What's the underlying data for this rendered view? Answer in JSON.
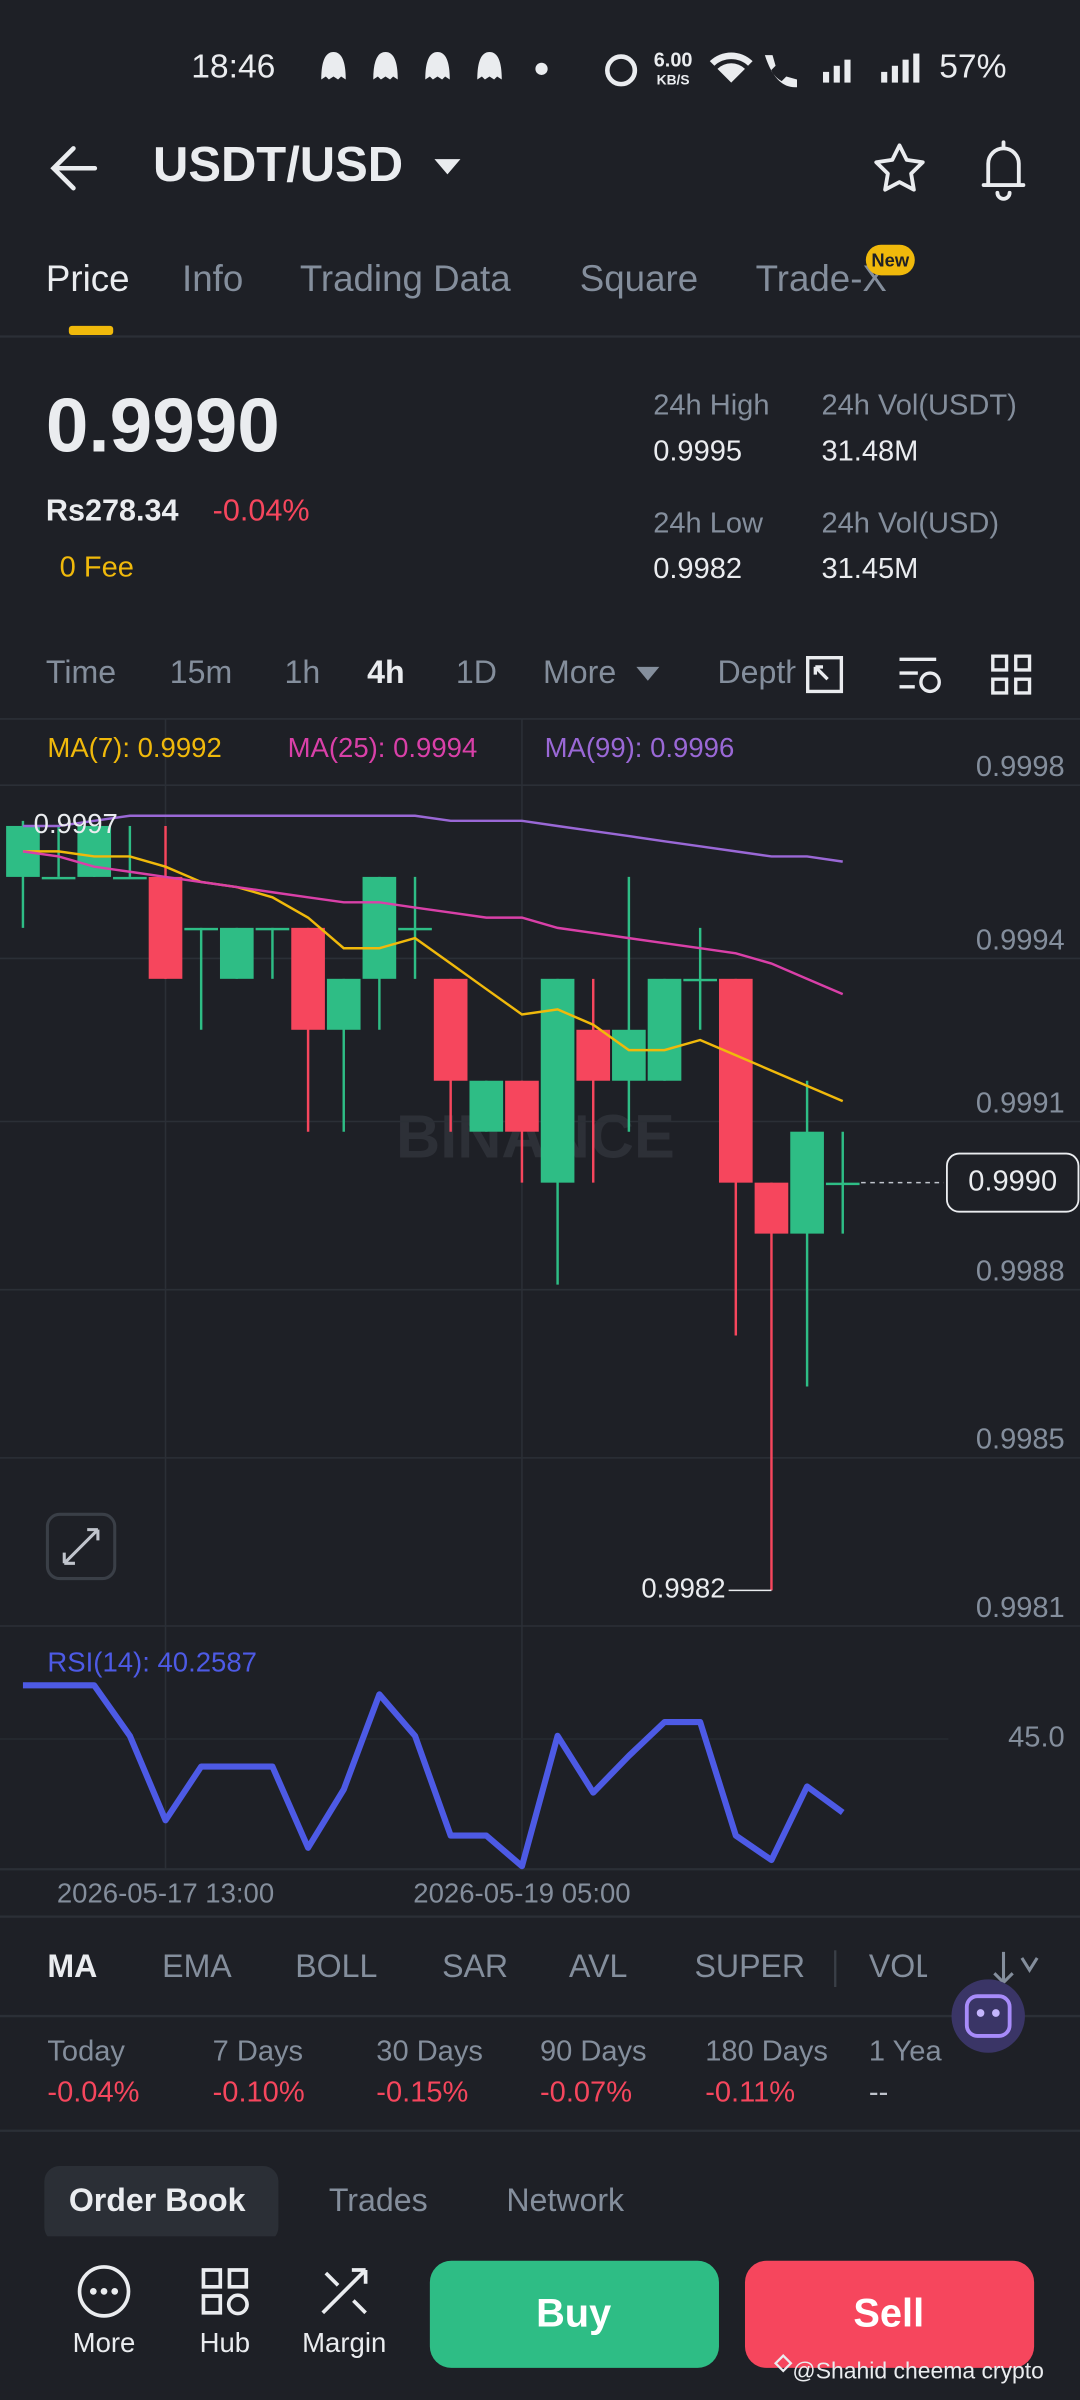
{
  "status_bar": {
    "time": "18:46",
    "speed": "6.00",
    "speed_unit": "KB/S",
    "battery": "57%"
  },
  "header": {
    "pair": "USDT/USD"
  },
  "tabs": [
    "Price",
    "Info",
    "Trading Data",
    "Square",
    "Trade-X"
  ],
  "tab_badge": "New",
  "summary": {
    "price": "0.9990",
    "fiat": "Rs278.34",
    "change": "-0.04%",
    "fee": "0 Fee",
    "stats": [
      {
        "label": "24h High",
        "value": "0.9995"
      },
      {
        "label": "24h Vol(USDT)",
        "value": "31.48M"
      },
      {
        "label": "24h Low",
        "value": "0.9982"
      },
      {
        "label": "24h Vol(USD)",
        "value": "31.45M"
      }
    ]
  },
  "intervals": [
    "Time",
    "15m",
    "1h",
    "4h",
    "1D",
    "More",
    "Depth"
  ],
  "chart_data": [
    {
      "type": "candlestick",
      "watermark": "BINANCE",
      "categories": [
        null,
        null,
        null,
        null,
        "2026-05-17 13:00",
        null,
        null,
        null,
        null,
        null,
        null,
        null,
        null,
        null,
        "2026-05-19 05:00",
        null,
        null,
        null,
        null,
        null,
        null,
        null,
        null,
        null
      ],
      "open": [
        0.9996,
        0.9996,
        0.9996,
        0.9996,
        0.9996,
        0.9995,
        0.9994,
        0.9995,
        0.9995,
        0.9993,
        0.9994,
        0.9995,
        0.9994,
        0.9991,
        0.9992,
        0.999,
        0.9993,
        0.9992,
        0.9992,
        0.9994,
        0.9994,
        0.999,
        0.9989,
        0.999
      ],
      "high": [
        0.99971,
        0.9997,
        0.9997,
        0.9997,
        0.9997,
        0.9995,
        0.9995,
        0.9995,
        0.9995,
        0.9994,
        0.9996,
        0.9996,
        0.9994,
        0.9992,
        0.9992,
        0.9994,
        0.9994,
        0.9996,
        0.9994,
        0.9995,
        0.9994,
        0.999,
        0.9992,
        0.9991
      ],
      "low": [
        0.9995,
        0.9996,
        0.9996,
        0.9996,
        0.9994,
        0.9993,
        0.9994,
        0.9994,
        0.9991,
        0.9991,
        0.9993,
        0.9994,
        0.9991,
        0.9991,
        0.999,
        0.9988,
        0.999,
        0.9991,
        0.9992,
        0.9993,
        0.9987,
        0.9982,
        0.9986,
        0.9989
      ],
      "close": [
        0.9997,
        0.9996,
        0.9997,
        0.9996,
        0.9994,
        0.9995,
        0.9995,
        0.9995,
        0.9993,
        0.9994,
        0.9996,
        0.9995,
        0.9992,
        0.9992,
        0.9991,
        0.9994,
        0.9992,
        0.9993,
        0.9994,
        0.9994,
        0.999,
        0.9989,
        0.9991,
        0.999
      ],
      "up_color": "#2ebd85",
      "down_color": "#f6465d",
      "series": [
        {
          "name": "MA(7): 0.9992",
          "color": "#f0b90b",
          "values": [
            0.99965,
            0.99965,
            0.99964,
            0.99964,
            0.99962,
            0.99959,
            0.99958,
            0.99956,
            0.99952,
            0.99946,
            0.99946,
            0.99948,
            0.99943,
            0.99938,
            0.99933,
            0.99934,
            0.99931,
            0.99926,
            0.99926,
            0.99928,
            0.99925,
            0.99922,
            0.99919,
            0.99916
          ]
        },
        {
          "name": "MA(25): 0.9994",
          "color": "#d940a8",
          "values": [
            0.99965,
            0.99964,
            0.99962,
            0.99961,
            0.9996,
            0.99959,
            0.99958,
            0.99957,
            0.99956,
            0.99955,
            0.99955,
            0.99954,
            0.99953,
            0.99952,
            0.99952,
            0.9995,
            0.99949,
            0.99948,
            0.99947,
            0.99946,
            0.99945,
            0.99943,
            0.9994,
            0.99937
          ]
        },
        {
          "name": "MA(99): 0.9996",
          "color": "#9a68d6",
          "values": [
            0.9997,
            0.9997,
            0.99971,
            0.99972,
            0.99972,
            0.99972,
            0.99972,
            0.99972,
            0.99972,
            0.99972,
            0.99972,
            0.99972,
            0.99971,
            0.99971,
            0.99971,
            0.9997,
            0.99969,
            0.99968,
            0.99967,
            0.99966,
            0.99965,
            0.99964,
            0.99964,
            0.99963
          ]
        }
      ],
      "high_label": 0.9997,
      "low_label": 0.9982,
      "last_price": {
        "value": 0.999,
        "label": "0.9990"
      },
      "ylim": [
        0.99813,
        0.99991
      ],
      "yticks": [
        {
          "value": 0.99978,
          "label": "0.9998"
        },
        {
          "value": 0.99944,
          "label": "0.9994"
        },
        {
          "value": 0.99912,
          "label": "0.9991"
        },
        {
          "value": 0.99879,
          "label": "0.9988"
        },
        {
          "value": 0.99846,
          "label": "0.9985"
        },
        {
          "value": 0.99813,
          "label": "0.9981"
        }
      ],
      "grid": true
    },
    {
      "type": "line",
      "series": [
        {
          "name": "RSI(14): 40.2587",
          "color": "#4d5ae5",
          "values": [
            48.46,
            48.46,
            48.46,
            45.2,
            39.76,
            43.22,
            43.22,
            43.22,
            37.98,
            41.74,
            47.87,
            45.2,
            38.77,
            38.77,
            36.8,
            45.2,
            41.54,
            43.91,
            46.09,
            46.09,
            38.77,
            37.19,
            41.94,
            40.2587
          ]
        }
      ],
      "ylim": [
        36.6,
        51.1
      ],
      "yticks": [
        {
          "value": 45,
          "label": "45.0"
        }
      ],
      "grid": true
    }
  ],
  "indicators": [
    "MA",
    "EMA",
    "BOLL",
    "SAR",
    "AVL",
    "SUPER",
    "VOL"
  ],
  "performance": [
    {
      "label": "Today",
      "value": "-0.04%"
    },
    {
      "label": "7 Days",
      "value": "-0.10%"
    },
    {
      "label": "30 Days",
      "value": "-0.15%"
    },
    {
      "label": "90 Days",
      "value": "-0.07%"
    },
    {
      "label": "180 Days",
      "value": "-0.11%"
    },
    {
      "label": "1 Year",
      "value": "--"
    }
  ],
  "book_tabs": [
    "Order Book",
    "Trades",
    "Network"
  ],
  "bottom_bar": {
    "actions": [
      "More",
      "Hub",
      "Margin"
    ],
    "buy": "Buy",
    "sell": "Sell"
  },
  "watermark": "@Shahid cheema crypto"
}
